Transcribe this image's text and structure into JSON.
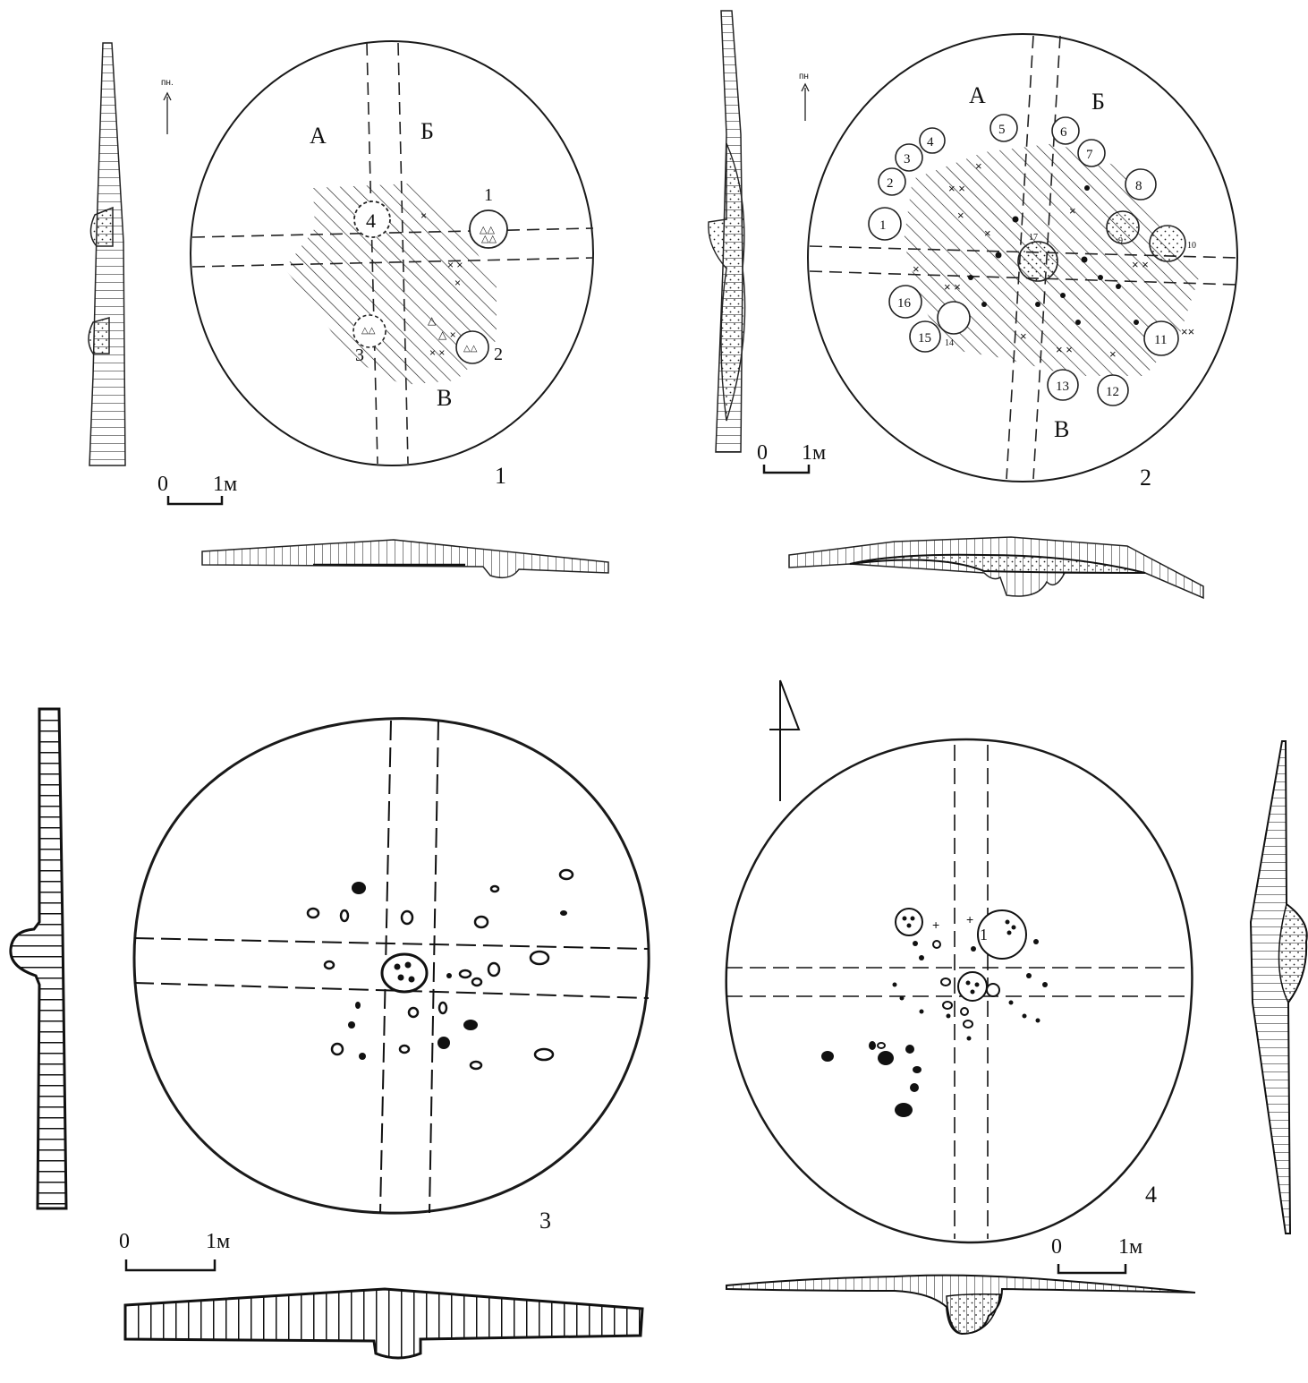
{
  "figures": [
    {
      "number": "1",
      "sectors": [
        "А",
        "Б",
        "В"
      ],
      "features": [
        "1",
        "2",
        "3",
        "4"
      ],
      "north_label": "пн.",
      "scale": {
        "zero": "0",
        "unit": "1м"
      }
    },
    {
      "number": "2",
      "sectors": [
        "А",
        "Б",
        "В"
      ],
      "features": [
        "1",
        "2",
        "3",
        "4",
        "5",
        "6",
        "7",
        "8",
        "9",
        "10",
        "11",
        "12",
        "13",
        "14",
        "15",
        "16",
        "17"
      ],
      "north_label": "пн",
      "scale": {
        "zero": "0",
        "unit": "1м"
      }
    },
    {
      "number": "3",
      "scale": {
        "zero": "0",
        "unit": "1м"
      }
    },
    {
      "number": "4",
      "features": [
        "1"
      ],
      "scale": {
        "zero": "0",
        "unit": "1м"
      }
    }
  ],
  "colors": {
    "ink": "#1a1a1a",
    "background": "#ffffff"
  }
}
